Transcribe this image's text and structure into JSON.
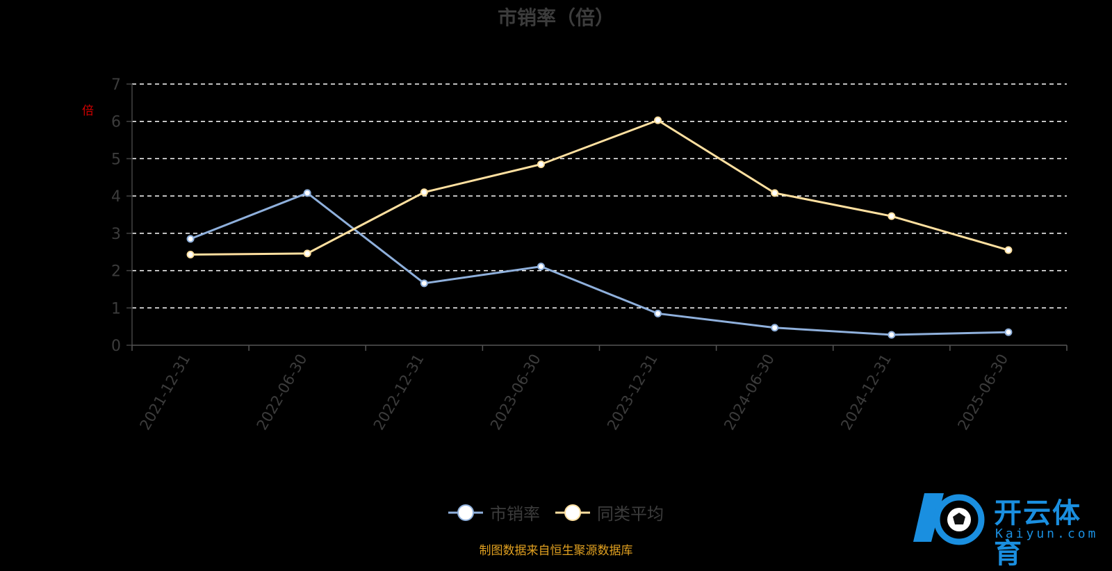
{
  "chart_data": {
    "type": "line",
    "title": "市销率（倍）",
    "ylabel": "倍",
    "xlabel": "",
    "categories": [
      "2021-12-31",
      "2022-06-30",
      "2022-12-31",
      "2023-06-30",
      "2023-12-31",
      "2024-06-30",
      "2024-12-31",
      "2025-06-30"
    ],
    "series": [
      {
        "name": "市销率",
        "color": "#8fb0dc",
        "values": [
          2.85,
          4.08,
          1.66,
          2.11,
          0.85,
          0.47,
          0.28,
          0.35
        ]
      },
      {
        "name": "同类平均",
        "color": "#ffe0a0",
        "values": [
          2.43,
          2.46,
          4.1,
          4.85,
          6.03,
          4.08,
          3.46,
          2.55
        ]
      }
    ],
    "ylim": [
      0,
      7
    ],
    "yticks": [
      0,
      1,
      2,
      3,
      4,
      5,
      6,
      7
    ],
    "grid": true,
    "legend_position": "bottom-center"
  },
  "source_note": "制图数据来自恒生聚源数据库",
  "logo": {
    "text": "开云体育",
    "subtext": "Kaiyun.com",
    "icon": "soccer-ball-icon"
  }
}
